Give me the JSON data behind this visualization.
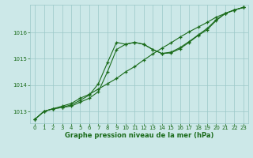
{
  "xlabel": "Graphe pression niveau de la mer (hPa)",
  "background_color": "#cce8e8",
  "plot_background": "#cce8e8",
  "line_color": "#1a6b1a",
  "marker": "+",
  "grid_color": "#9ac8c8",
  "xlim": [
    -0.5,
    23.5
  ],
  "ylim": [
    1012.55,
    1017.05
  ],
  "yticks": [
    1013,
    1014,
    1015,
    1016
  ],
  "xticks": [
    0,
    1,
    2,
    3,
    4,
    5,
    6,
    7,
    8,
    9,
    10,
    11,
    12,
    13,
    14,
    15,
    16,
    17,
    18,
    19,
    20,
    21,
    22,
    23
  ],
  "series1_x": [
    0,
    1,
    2,
    3,
    4,
    5,
    6,
    7,
    8,
    9,
    10,
    11,
    12,
    13,
    14,
    15,
    16,
    17,
    18,
    19,
    20,
    21,
    22,
    23
  ],
  "series1_y": [
    1012.7,
    1013.0,
    1013.1,
    1013.2,
    1013.3,
    1013.5,
    1013.65,
    1013.85,
    1014.05,
    1014.25,
    1014.5,
    1014.7,
    1014.95,
    1015.18,
    1015.4,
    1015.6,
    1015.82,
    1016.02,
    1016.2,
    1016.38,
    1016.58,
    1016.72,
    1016.85,
    1016.95
  ],
  "series2_x": [
    0,
    1,
    2,
    3,
    4,
    5,
    6,
    7,
    8,
    9,
    10,
    11,
    12,
    13,
    14,
    15,
    16,
    17,
    18,
    19,
    20,
    21,
    22,
    23
  ],
  "series2_y": [
    1012.7,
    1013.0,
    1013.1,
    1013.15,
    1013.2,
    1013.35,
    1013.5,
    1013.75,
    1014.5,
    1015.35,
    1015.55,
    1015.62,
    1015.55,
    1015.35,
    1015.2,
    1015.22,
    1015.38,
    1015.62,
    1015.88,
    1016.1,
    1016.45,
    1016.72,
    1016.85,
    1016.95
  ],
  "series3_x": [
    0,
    1,
    2,
    3,
    4,
    5,
    6,
    7,
    8,
    9,
    10,
    11,
    12,
    13,
    14,
    15,
    16,
    17,
    18,
    19,
    20,
    21,
    22,
    23
  ],
  "series3_y": [
    1012.7,
    1013.0,
    1013.1,
    1013.15,
    1013.25,
    1013.42,
    1013.62,
    1014.05,
    1014.85,
    1015.62,
    1015.55,
    1015.62,
    1015.55,
    1015.35,
    1015.2,
    1015.25,
    1015.42,
    1015.65,
    1015.9,
    1016.15,
    1016.48,
    1016.72,
    1016.85,
    1016.95
  ],
  "tick_fontsize": 5,
  "xlabel_fontsize": 6
}
